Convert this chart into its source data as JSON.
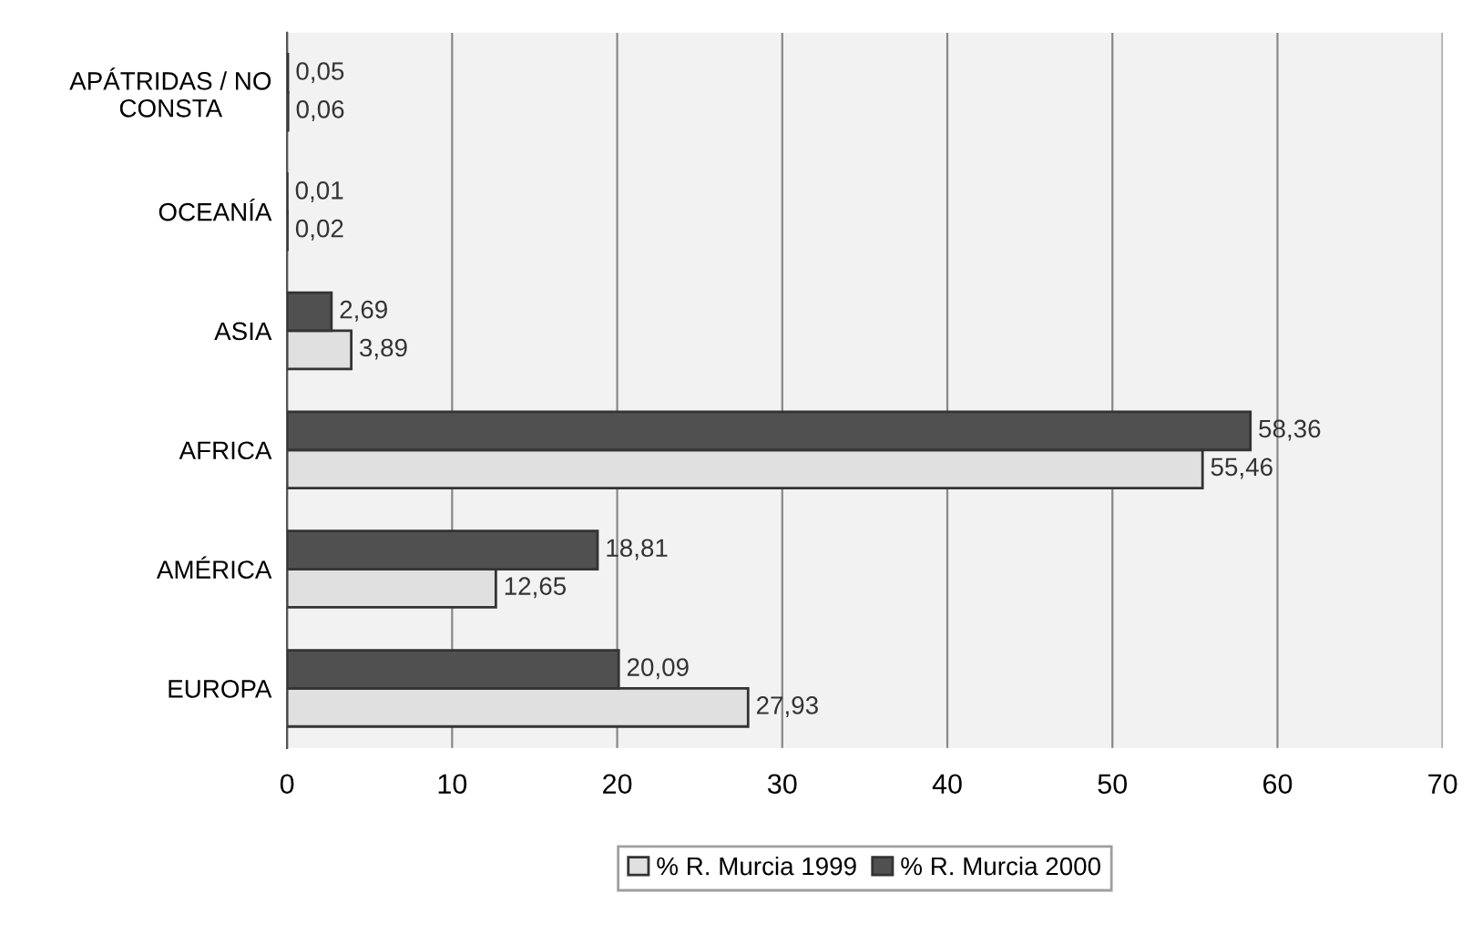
{
  "chart_data": {
    "type": "bar",
    "orientation": "horizontal",
    "categories": [
      "APÁTRIDAS / NO\nCONSTA",
      "OCEANÍA",
      "ASIA",
      "AFRICA",
      "AMÉRICA",
      "EUROPA"
    ],
    "series": [
      {
        "name": "% R. Murcia 1999",
        "color": "#e0e0e0",
        "values": [
          0.06,
          0.02,
          3.89,
          55.46,
          12.65,
          27.93
        ],
        "value_labels": [
          "0,06",
          "0,02",
          "3,89",
          "55,46",
          "12,65",
          "27,93"
        ]
      },
      {
        "name": "% R. Murcia 2000",
        "color": "#505050",
        "values": [
          0.05,
          0.01,
          2.69,
          58.36,
          18.81,
          20.09
        ],
        "value_labels": [
          "0,05",
          "0,01",
          "2,69",
          "58,36",
          "18,81",
          "20,09"
        ]
      }
    ],
    "xlim": [
      0,
      70
    ],
    "xticks": [
      0,
      10,
      20,
      30,
      40,
      50,
      60,
      70
    ],
    "grid": "x",
    "legend": "bottom"
  }
}
